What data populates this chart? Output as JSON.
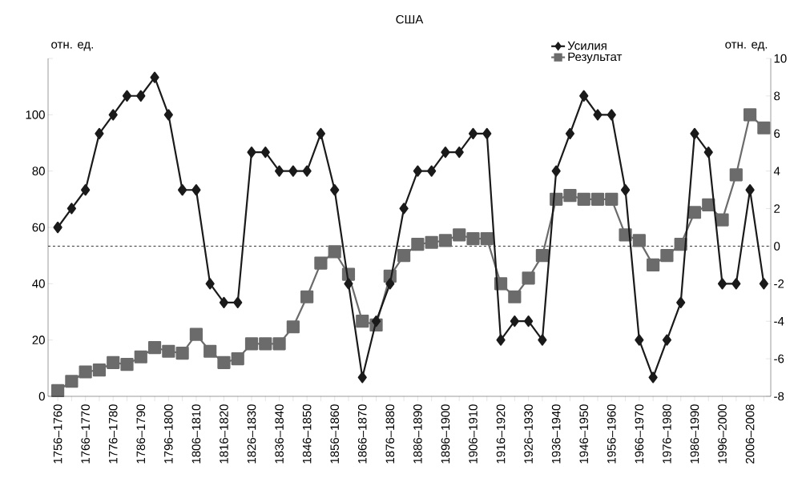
{
  "chart_data": {
    "type": "line",
    "title": "США",
    "ylabel": "отн. ед.",
    "y2label": "отн. ед.",
    "categories": [
      "1756–1760",
      null,
      "1766–1770",
      null,
      "1776–1780",
      null,
      "1786–1790",
      null,
      "1796–1800",
      null,
      "1806–1810",
      null,
      "1816–1820",
      null,
      "1826–1830",
      null,
      "1836–1840",
      null,
      "1846–1850",
      null,
      "1856–1860",
      null,
      "1866–1870",
      null,
      "1876–1880",
      null,
      "1886–1890",
      null,
      "1896–1900",
      null,
      "1906–1910",
      null,
      "1916–1920",
      null,
      "1926–1930",
      null,
      "1936–1940",
      null,
      "1946–1950",
      null,
      "1956–1960",
      null,
      "1966–1970",
      null,
      "1976–1980",
      null,
      "1986–1990",
      null,
      "1996–2000",
      null,
      "2006–2008",
      null
    ],
    "series": [
      {
        "name": "Усилия",
        "color": "#1a1a1a",
        "marker": "diamond",
        "values": [
          60,
          66.7,
          73.3,
          93.3,
          100,
          106.7,
          106.7,
          113.3,
          100,
          73.3,
          73.3,
          40,
          33.3,
          33.3,
          86.7,
          86.7,
          80,
          80,
          80,
          93.3,
          73.3,
          40,
          6.7,
          26.7,
          40,
          66.7,
          80,
          80,
          86.7,
          86.7,
          93.3,
          93.3,
          20,
          26.7,
          26.7,
          20,
          80,
          93.3,
          106.7,
          100,
          100,
          73.3,
          20,
          6.7,
          20,
          33.3,
          93.3,
          86.7,
          40,
          40,
          73.3,
          40
        ]
      },
      {
        "name": "Результат",
        "color": "#6b6b6b",
        "marker": "square",
        "axis": "y2",
        "values": [
          -7.7,
          -7.2,
          -6.7,
          -6.6,
          -6.2,
          -6.3,
          -5.9,
          -5.4,
          -5.6,
          -5.7,
          -4.7,
          -5.6,
          -6.2,
          -6.0,
          -5.2,
          -5.2,
          -5.2,
          -4.3,
          -2.7,
          -0.9,
          -0.3,
          -1.5,
          -4.0,
          -4.2,
          -1.6,
          -0.5,
          0.1,
          0.2,
          0.3,
          0.6,
          0.4,
          0.4,
          -2.0,
          -2.7,
          -1.7,
          -0.5,
          2.5,
          2.7,
          2.5,
          2.5,
          2.5,
          0.6,
          0.3,
          -1.0,
          -0.5,
          0.1,
          1.8,
          2.2,
          1.4,
          3.8,
          7.0,
          6.3
        ]
      }
    ],
    "ylim": [
      0,
      120
    ],
    "yticks": [
      0,
      20,
      40,
      60,
      80,
      100,
      {
        "value": 120,
        "label": null
      }
    ],
    "y2lim": [
      -8,
      10
    ],
    "y2ticks": [
      -8,
      -6,
      -4,
      -2,
      0,
      2,
      4,
      6,
      8,
      10
    ],
    "ref_lines": [
      {
        "axis": "y2",
        "value": 0,
        "line_style": "dashed",
        "color": "#000000"
      }
    ],
    "grid": false,
    "legend": "top right",
    "line_style": "solid"
  }
}
